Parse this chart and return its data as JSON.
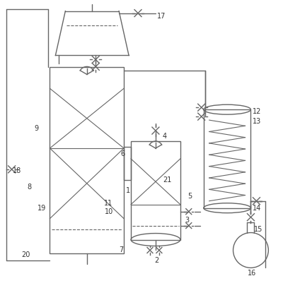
{
  "bg_color": "#ffffff",
  "lc": "#666666",
  "lw": 1.0,
  "tlw": 0.8,
  "fig_w": 4.0,
  "fig_h": 4.08,
  "dpi": 100
}
